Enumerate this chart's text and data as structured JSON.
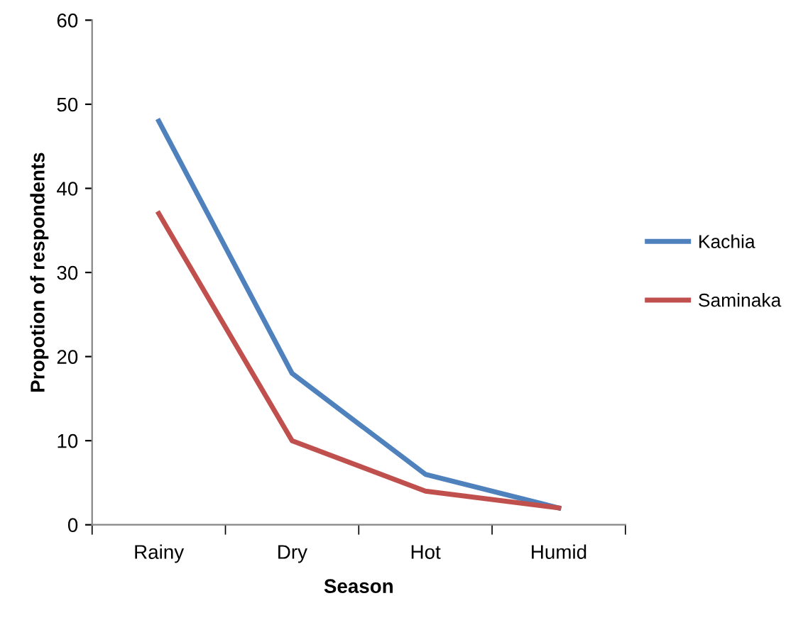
{
  "chart_data": {
    "type": "line",
    "xlabel": "Season",
    "ylabel": "Propotion of respondents",
    "categories": [
      "Rainy",
      "Dry",
      "Hot",
      "Humid"
    ],
    "series": [
      {
        "name": "Kachia",
        "color": "#4f81bd",
        "values": [
          48,
          18,
          6,
          2
        ]
      },
      {
        "name": "Saminaka",
        "color": "#c0504d",
        "values": [
          37,
          10,
          4,
          2
        ]
      }
    ],
    "ylim": [
      0,
      60
    ],
    "yticks": [
      0,
      10,
      20,
      30,
      40,
      50,
      60
    ],
    "grid": false,
    "legend": "right",
    "marker": "none",
    "line_style": "solid"
  }
}
